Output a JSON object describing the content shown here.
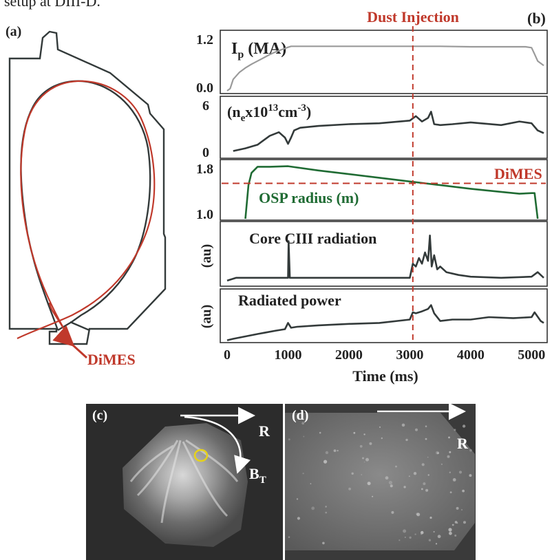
{
  "top_text": "setup at DIII-D.",
  "panel_a": {
    "label": "(a)",
    "dimes_label": "DiMES",
    "colors": {
      "vessel": "#333a3a",
      "red_shape": "#c0392b",
      "black_shape": "#333a3a",
      "arrow": "#c0392b"
    }
  },
  "panel_b": {
    "label": "(b)",
    "dust_injection_label": "Dust Injection",
    "xlabel": "Time (ms)",
    "x_ticks": [
      "0",
      "1000",
      "2000",
      "3000",
      "4000",
      "5000"
    ],
    "colors": {
      "dashed": "#c0392b",
      "trace": "#333a3a",
      "ip_trace": "#9a9a9a",
      "osp_trace": "#1f6b33"
    }
  },
  "panel_c": {
    "label": "(c)",
    "r_label": "R",
    "bt_label": "B",
    "bt_sub": "T",
    "marker_color": "#e6d21a"
  },
  "panel_d": {
    "label": "(d)",
    "r_label": "R"
  },
  "chart_data": [
    {
      "type": "line",
      "title": "I_p (MA)",
      "title_main": "I",
      "title_sub": "p",
      "title_rest": " (MA)",
      "ylabel": "",
      "xlim": [
        0,
        5200
      ],
      "ylim": [
        0.0,
        1.2
      ],
      "y_ticks": [
        "1.2",
        "0.0"
      ],
      "x": [
        0,
        50,
        100,
        200,
        300,
        400,
        500,
        600,
        700,
        800,
        900,
        1000,
        1050,
        1100,
        1500,
        2000,
        2500,
        3000,
        3500,
        4000,
        4500,
        4900,
        5000,
        5050,
        5100,
        5200
      ],
      "values": [
        0.0,
        0.05,
        0.25,
        0.4,
        0.5,
        0.58,
        0.65,
        0.72,
        0.79,
        0.85,
        0.9,
        0.95,
        0.97,
        0.97,
        0.97,
        0.97,
        0.97,
        0.97,
        0.97,
        0.96,
        0.96,
        0.96,
        0.94,
        0.8,
        0.65,
        0.55
      ]
    },
    {
      "type": "line",
      "title": "(n_e x10^13 cm^-3)",
      "ylabel": "",
      "xlim": [
        0,
        5200
      ],
      "ylim": [
        0,
        6
      ],
      "y_ticks": [
        "6",
        "0"
      ],
      "x": [
        100,
        300,
        500,
        700,
        850,
        950,
        1000,
        1050,
        1100,
        1200,
        1500,
        2000,
        2500,
        3000,
        3100,
        3200,
        3300,
        3350,
        3400,
        3500,
        3700,
        4000,
        4500,
        4800,
        5000,
        5100,
        5200
      ],
      "values": [
        0.5,
        0.8,
        1.2,
        2.2,
        2.6,
        2.0,
        1.3,
        2.0,
        2.8,
        3.1,
        3.3,
        3.5,
        3.6,
        3.9,
        4.4,
        3.8,
        4.2,
        4.9,
        3.5,
        3.4,
        3.5,
        3.7,
        3.4,
        3.8,
        3.6,
        2.8,
        2.5
      ]
    },
    {
      "type": "line",
      "title": "OSP radius (m)",
      "ylabel": "",
      "xlim": [
        0,
        5200
      ],
      "ylim": [
        1.0,
        1.9
      ],
      "y_ticks": [
        "1.8",
        "1.4",
        "1.0"
      ],
      "dimes_label": "DiMES",
      "dimes_level": 1.58,
      "x": [
        300,
        350,
        400,
        500,
        700,
        1000,
        1500,
        2000,
        2500,
        3000,
        3500,
        4000,
        4500,
        4800,
        5000,
        5050,
        5100
      ],
      "values": [
        1.0,
        1.55,
        1.75,
        1.85,
        1.85,
        1.86,
        1.79,
        1.73,
        1.67,
        1.61,
        1.55,
        1.49,
        1.44,
        1.41,
        1.42,
        1.42,
        1.0
      ]
    },
    {
      "type": "line",
      "title": "Core CIII radiation",
      "ylabel": "(au)",
      "xlim": [
        0,
        5200
      ],
      "ylim": [
        0,
        1
      ],
      "x": [
        0,
        150,
        300,
        500,
        800,
        1000,
        1010,
        1030,
        1050,
        1200,
        1500,
        2000,
        2500,
        2900,
        3000,
        3050,
        3100,
        3150,
        3200,
        3250,
        3300,
        3330,
        3360,
        3400,
        3450,
        3500,
        3600,
        3800,
        4000,
        4500,
        5000,
        5100,
        5200
      ],
      "values": [
        0.05,
        0.1,
        0.1,
        0.1,
        0.1,
        0.1,
        0.75,
        0.1,
        0.1,
        0.1,
        0.1,
        0.1,
        0.1,
        0.1,
        0.1,
        0.35,
        0.3,
        0.45,
        0.35,
        0.55,
        0.4,
        0.85,
        0.3,
        0.5,
        0.25,
        0.3,
        0.2,
        0.15,
        0.12,
        0.1,
        0.12,
        0.2,
        0.1
      ]
    },
    {
      "type": "line",
      "title": "Radiated power",
      "ylabel": "(au)",
      "xlim": [
        0,
        5200
      ],
      "ylim": [
        0,
        1
      ],
      "x": [
        0,
        100,
        300,
        500,
        800,
        950,
        1000,
        1050,
        1150,
        1500,
        2000,
        2500,
        3000,
        3050,
        3100,
        3200,
        3300,
        3350,
        3400,
        3500,
        3700,
        4000,
        4300,
        4700,
        5000,
        5050,
        5150,
        5200
      ],
      "values": [
        0.02,
        0.05,
        0.1,
        0.15,
        0.22,
        0.25,
        0.38,
        0.28,
        0.3,
        0.33,
        0.36,
        0.38,
        0.45,
        0.6,
        0.58,
        0.62,
        0.67,
        0.75,
        0.58,
        0.42,
        0.45,
        0.45,
        0.5,
        0.48,
        0.5,
        0.6,
        0.42,
        0.38
      ]
    }
  ]
}
